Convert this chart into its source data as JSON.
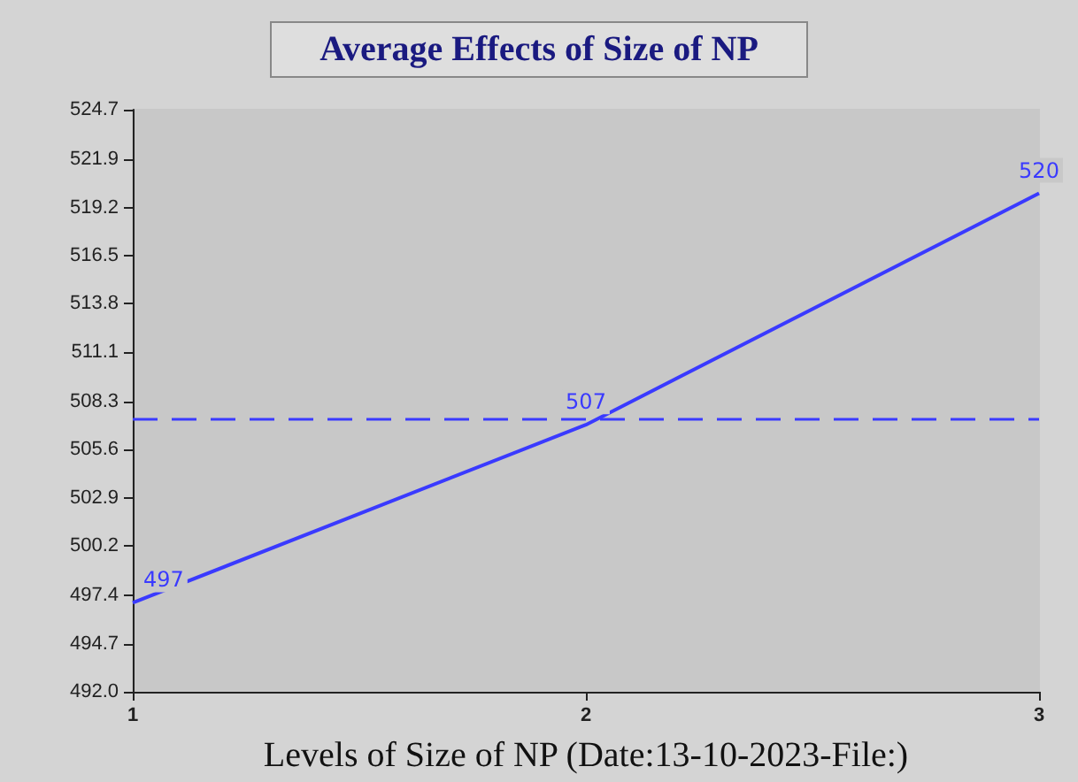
{
  "chart_data": {
    "type": "line",
    "title": "Average Effects of Size of NP",
    "xlabel": "Levels of Size of NP (Date:13-10-2023-File:)",
    "x": [
      1,
      2,
      3
    ],
    "series": [
      {
        "color": "#3a3aff",
        "values": [
          497,
          507,
          520
        ]
      }
    ],
    "data_labels": true,
    "marker": "none",
    "line_style": "solid",
    "grid": false,
    "xlim": [
      1,
      3
    ],
    "xticks": [
      1,
      2,
      3
    ],
    "ylim": [
      492,
      524.7
    ],
    "yticks": [
      {
        "value": 492,
        "label": "492.0"
      },
      {
        "value": 494.7,
        "label": "494.7"
      },
      {
        "value": 497.4,
        "label": "497.4"
      },
      {
        "value": 500.2,
        "label": "500.2"
      },
      {
        "value": 502.9,
        "label": "502.9"
      },
      {
        "value": 505.6,
        "label": "505.6"
      },
      {
        "value": 508.3,
        "label": "508.3"
      },
      {
        "value": 511.1,
        "label": "511.1"
      },
      {
        "value": 513.8,
        "label": "513.8"
      },
      {
        "value": 516.5,
        "label": "516.5"
      },
      {
        "value": 519.2,
        "label": "519.2"
      },
      {
        "value": 521.9,
        "label": "521.9"
      },
      {
        "value": 524.7,
        "label": "524.7"
      }
    ],
    "ref_lines": [
      {
        "axis": "y",
        "value": 507.3,
        "color": "#3a3aff",
        "line_style": "dashed"
      }
    ]
  }
}
